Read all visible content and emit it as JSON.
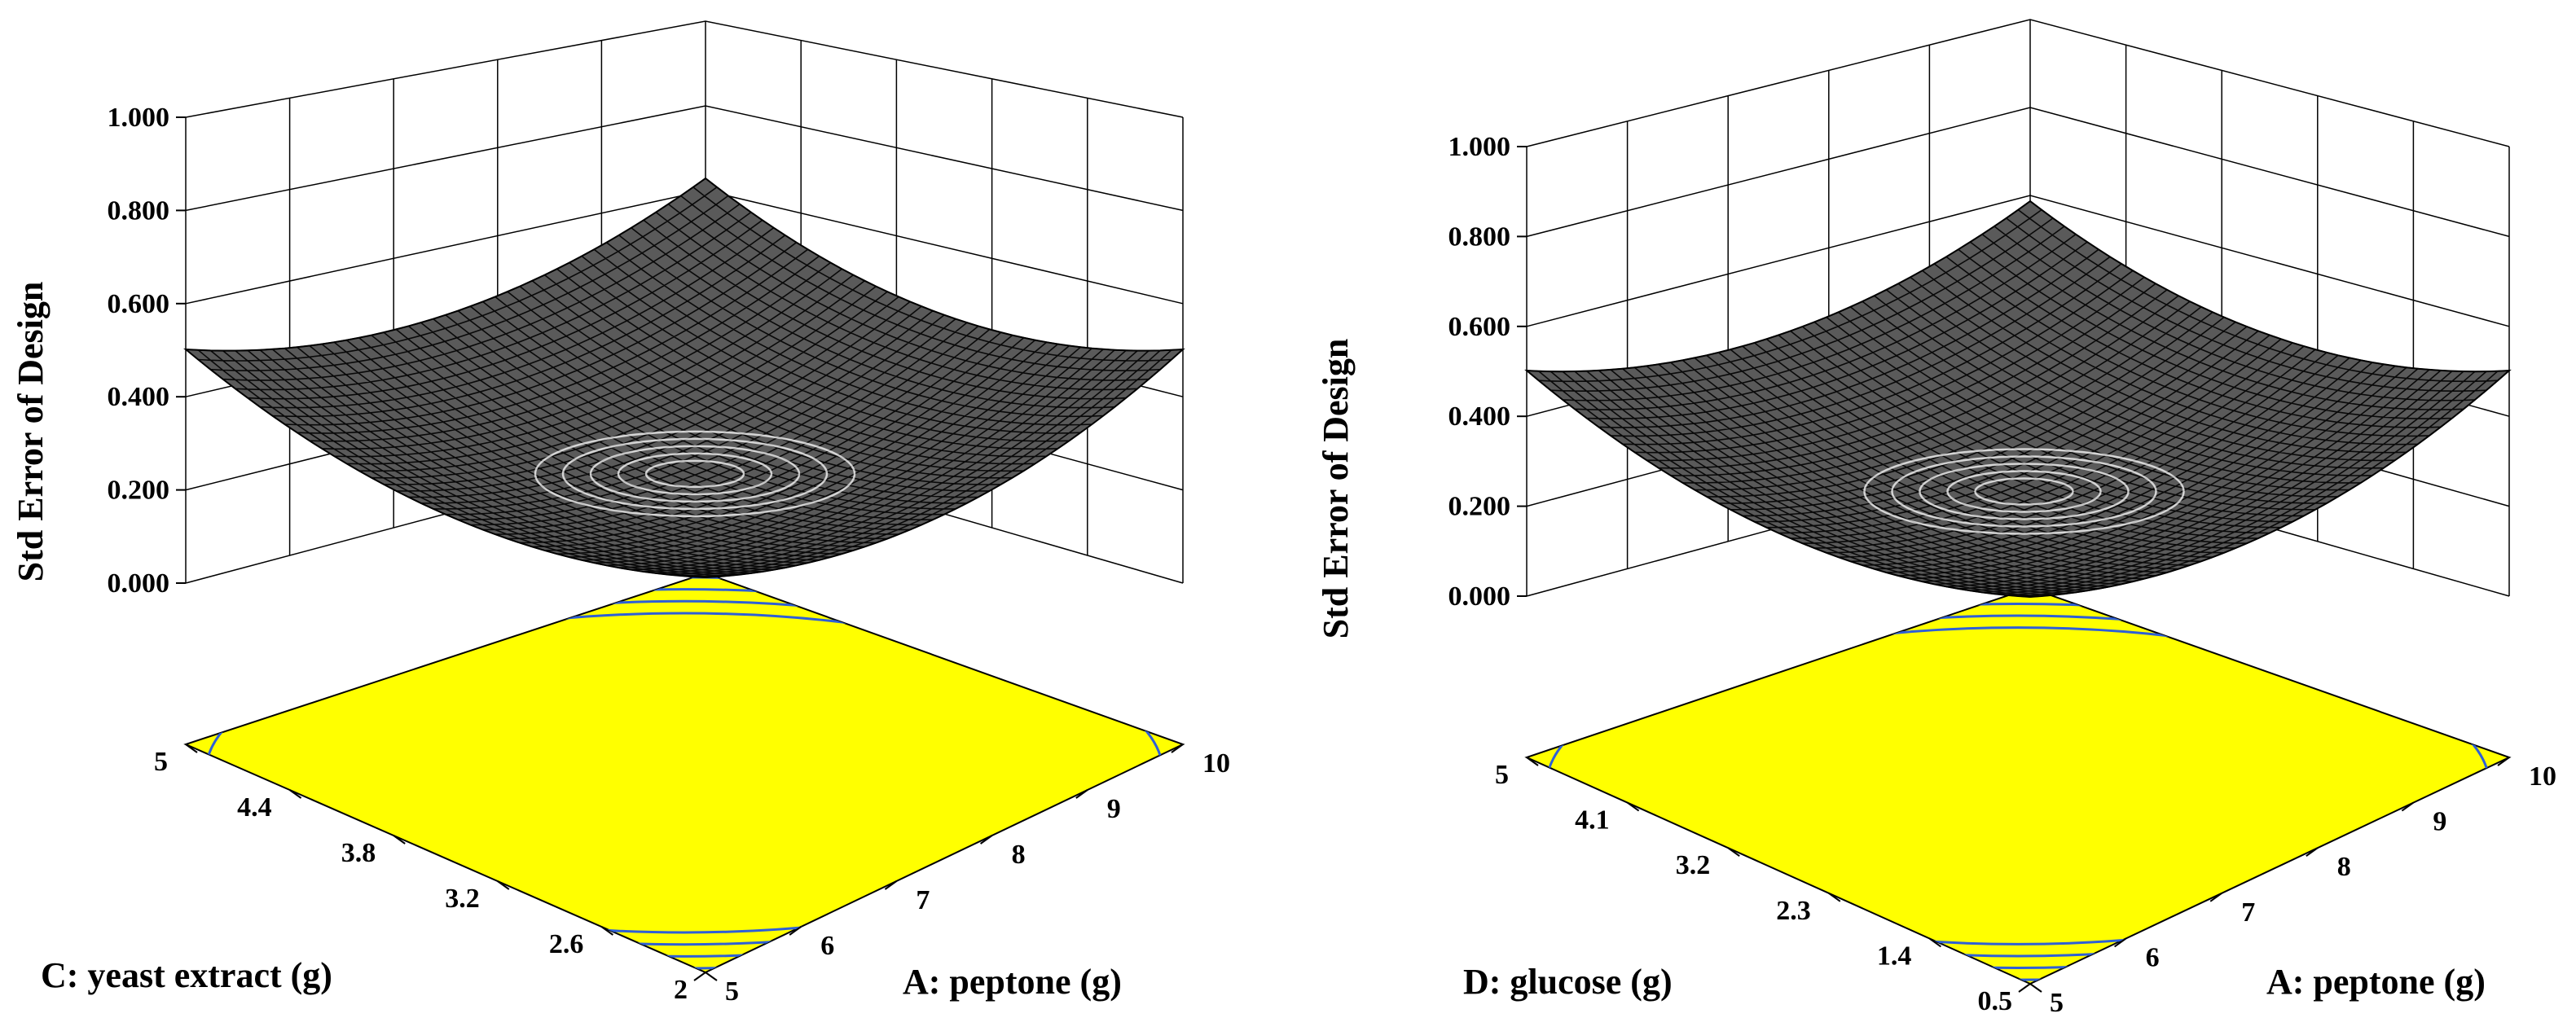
{
  "chart_data": [
    {
      "type": "surface3d",
      "title": "",
      "zlabel": "Std Error of Design",
      "zticks": [
        "0.000",
        "0.200",
        "0.400",
        "0.600",
        "0.800",
        "1.000"
      ],
      "zlim": [
        0,
        1
      ],
      "left_axis": {
        "label": "C: yeast extract (g)",
        "ticks": [
          "2",
          "2.6",
          "3.2",
          "3.8",
          "4.4",
          "5"
        ],
        "range": [
          2,
          5
        ]
      },
      "right_axis": {
        "label": "A: peptone (g)",
        "ticks": [
          "5",
          "6",
          "7",
          "8",
          "9",
          "10"
        ],
        "range": [
          5,
          10
        ]
      },
      "surface": {
        "corner_value": 0.5,
        "center_value": 0.3,
        "min_value": 0.28
      },
      "contour_colors": {
        "fill": "#FFFF00",
        "lines": "#2E5FD6"
      }
    },
    {
      "type": "surface3d",
      "title": "",
      "zlabel": "Std Error of Design",
      "zticks": [
        "0.000",
        "0.200",
        "0.400",
        "0.600",
        "0.800",
        "1.000"
      ],
      "zlim": [
        0,
        1
      ],
      "left_axis": {
        "label": "D: glucose (g)",
        "ticks": [
          "0.5",
          "1.4",
          "2.3",
          "3.2",
          "4.1",
          "5"
        ],
        "range": [
          0.5,
          5
        ]
      },
      "right_axis": {
        "label": "A: peptone (g)",
        "ticks": [
          "5",
          "6",
          "7",
          "8",
          "9",
          "10"
        ],
        "range": [
          5,
          10
        ]
      },
      "surface": {
        "corner_value": 0.5,
        "center_value": 0.3,
        "min_value": 0.28
      },
      "contour_colors": {
        "fill": "#FFFF00",
        "lines": "#2E5FD6"
      }
    }
  ]
}
